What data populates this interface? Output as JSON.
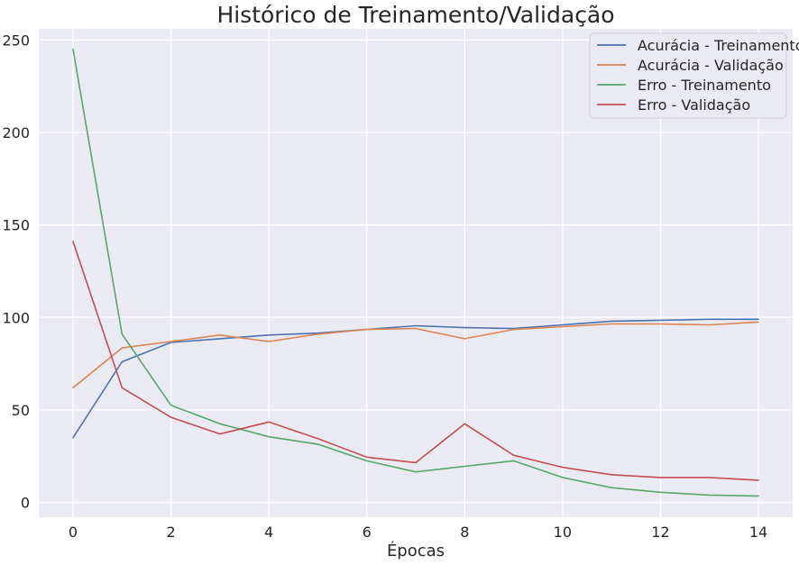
{
  "chart_data": {
    "type": "line",
    "title": "Histórico de Treinamento/Validação",
    "xlabel": "Épocas",
    "ylabel": "",
    "xlim": [
      -0.7,
      14.7
    ],
    "ylim": [
      -8,
      256
    ],
    "xticks": [
      0,
      2,
      4,
      6,
      8,
      10,
      12,
      14
    ],
    "yticks": [
      0,
      50,
      100,
      150,
      200,
      250
    ],
    "grid": true,
    "legend_position": "top-right",
    "x": [
      0,
      1,
      2,
      3,
      4,
      5,
      6,
      7,
      8,
      9,
      10,
      11,
      12,
      13,
      14
    ],
    "series": [
      {
        "name": "Acurácia - Treinamento",
        "color": "#4c72b0",
        "values": [
          35,
          76,
          86.5,
          88.5,
          90.5,
          91.5,
          93.5,
          95.5,
          94.5,
          94,
          96,
          98,
          98.5,
          99,
          99
        ]
      },
      {
        "name": "Acurácia - Validação",
        "color": "#dd8452",
        "values": [
          62,
          83.5,
          87,
          90.5,
          87,
          91,
          93.5,
          94,
          88.5,
          93.5,
          95,
          96.5,
          96.5,
          96,
          97.5
        ]
      },
      {
        "name": "Erro - Treinamento",
        "color": "#55a868",
        "values": [
          245,
          91,
          52.5,
          42.5,
          35.5,
          31.5,
          22.5,
          16.5,
          19.5,
          22.5,
          13.5,
          8,
          5.5,
          4,
          3.5
        ]
      },
      {
        "name": "Erro - Validação",
        "color": "#c44e52",
        "values": [
          141,
          62,
          46,
          37,
          43.5,
          34.5,
          24.5,
          21.5,
          42.5,
          25.5,
          19,
          15,
          13.5,
          13.5,
          12
        ]
      }
    ]
  }
}
